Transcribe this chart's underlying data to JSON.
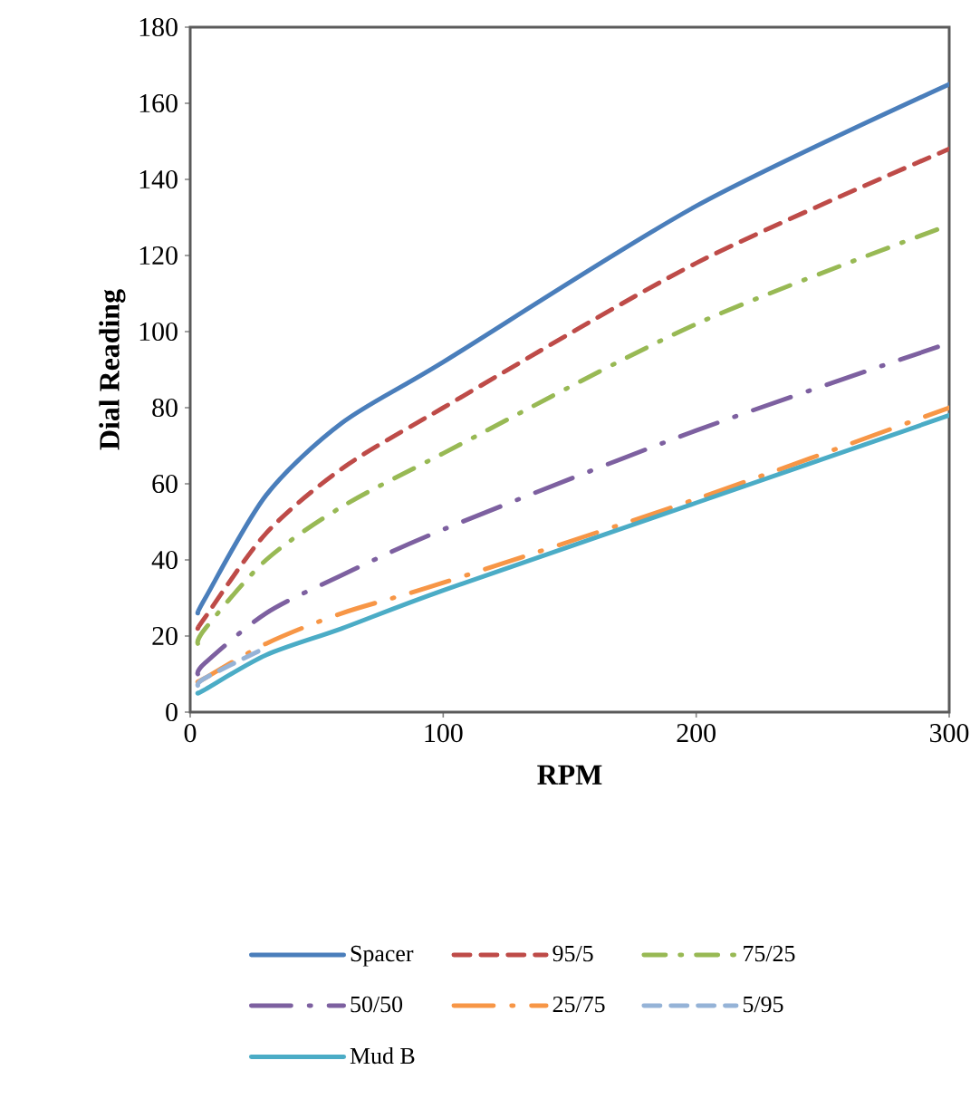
{
  "chart_data": {
    "type": "line",
    "xlabel": "RPM",
    "ylabel": "Dial Reading",
    "xlim": [
      0,
      300
    ],
    "ylim": [
      0,
      180
    ],
    "xticks": [
      0,
      100,
      200,
      300
    ],
    "yticks": [
      0,
      20,
      40,
      60,
      80,
      100,
      120,
      140,
      160,
      180
    ],
    "grid": false,
    "legend": "bottom",
    "marker": "none",
    "x": [
      3,
      6,
      30,
      60,
      100,
      200,
      300
    ],
    "series": [
      {
        "name": "Spacer",
        "color": "#4a7ebb",
        "line_style": "solid",
        "values": [
          26,
          30,
          57,
          76,
          92,
          133,
          165
        ]
      },
      {
        "name": "95/5",
        "color": "#be4b48",
        "line_style": "dashed",
        "values": [
          22,
          25,
          47,
          64,
          80,
          118,
          148
        ]
      },
      {
        "name": "75/25",
        "color": "#98b954",
        "line_style": "dashdot",
        "values": [
          18,
          22,
          40,
          54,
          68,
          102,
          128
        ]
      },
      {
        "name": "50/50",
        "color": "#7d60a0",
        "line_style": "longdashdot",
        "values": [
          10,
          13,
          26,
          36,
          48,
          74,
          97
        ]
      },
      {
        "name": "25/75",
        "color": "#f79646",
        "line_style": "longdashdot",
        "values": [
          8,
          9,
          18,
          26,
          34,
          56,
          80
        ]
      },
      {
        "name": "5/95",
        "color": "#95b3d7",
        "line_style": "dashed",
        "values": [
          7,
          9,
          17,
          null,
          null,
          null,
          null
        ]
      },
      {
        "name": "Mud B",
        "color": "#4bacc6",
        "line_style": "solid",
        "values": [
          5,
          6,
          15,
          22,
          32,
          55,
          78
        ]
      }
    ]
  }
}
